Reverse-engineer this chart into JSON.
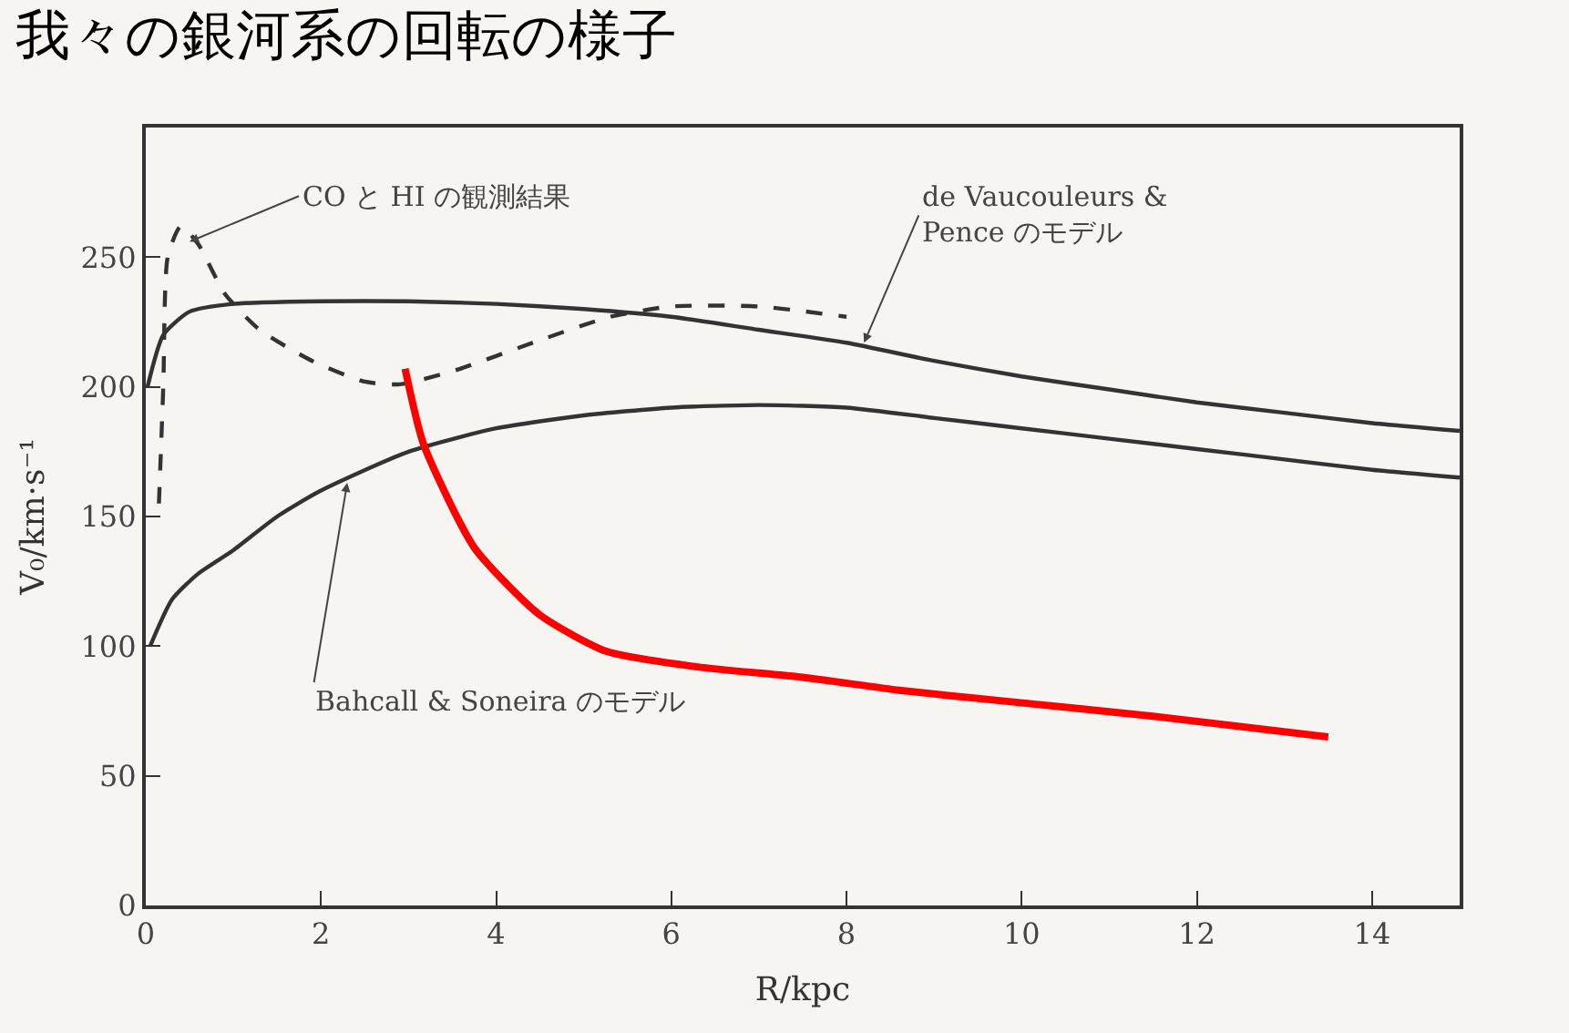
{
  "chart_data": {
    "type": "line",
    "title": "我々の銀河系の回転の様子",
    "xlabel": "R/kpc",
    "ylabel": "V₀/km·s⁻¹",
    "xlim": [
      0,
      15
    ],
    "ylim": [
      0,
      300
    ],
    "xticks": [
      0,
      2,
      4,
      6,
      8,
      10,
      12,
      14
    ],
    "yticks": [
      0,
      50,
      100,
      150,
      200,
      250
    ],
    "series": [
      {
        "color": "#333333",
        "line_style": "solid",
        "x": [
          0.02,
          0.2,
          0.5,
          1,
          2,
          3,
          4,
          5,
          6,
          7,
          8,
          9,
          10,
          11,
          12,
          13,
          14,
          15
        ],
        "values": [
          200,
          220,
          229,
          232,
          233,
          233,
          232,
          230,
          227,
          222,
          217,
          210,
          204,
          199,
          194,
          190,
          186,
          183
        ]
      },
      {
        "color": "#333333",
        "line_style": "solid",
        "x": [
          0.05,
          0.3,
          0.6,
          1,
          1.5,
          2,
          3,
          4,
          5,
          6,
          7,
          8,
          9,
          10,
          11,
          12,
          13,
          14,
          15
        ],
        "values": [
          100,
          118,
          128,
          137,
          150,
          160,
          175,
          184,
          189,
          192,
          193,
          192,
          188,
          184,
          180,
          176,
          172,
          168,
          165
        ]
      },
      {
        "color": "#333333",
        "line_style": "dashed",
        "x": [
          0.15,
          0.2,
          0.25,
          0.4,
          0.6,
          0.9,
          1.3,
          1.9,
          2.5,
          2.9,
          3.5,
          4.5,
          5.3,
          6,
          7,
          8
        ],
        "values": [
          155,
          200,
          250,
          262,
          255,
          236,
          222,
          210,
          202,
          201,
          206,
          218,
          227,
          231,
          231,
          227
        ]
      },
      {
        "color": "#ff0000",
        "line_style": "solid",
        "x": [
          2.96,
          3.17,
          3.75,
          4.5,
          5.26,
          6.3,
          7.5,
          8.6,
          9.75,
          11.5,
          13.5
        ],
        "values": [
          207,
          178,
          138,
          112,
          98,
          92,
          88,
          83,
          79,
          73,
          65
        ]
      }
    ],
    "annotations": [
      {
        "text": "CO と HI の観測結果",
        "x": 0.5,
        "y": 256
      },
      {
        "text": "de Vaucouleurs &\nPence のモデル",
        "x": 8.2,
        "y": 217
      },
      {
        "text": "Bahcall & Soneira のモデル",
        "x": 2.3,
        "y": 163
      }
    ]
  }
}
